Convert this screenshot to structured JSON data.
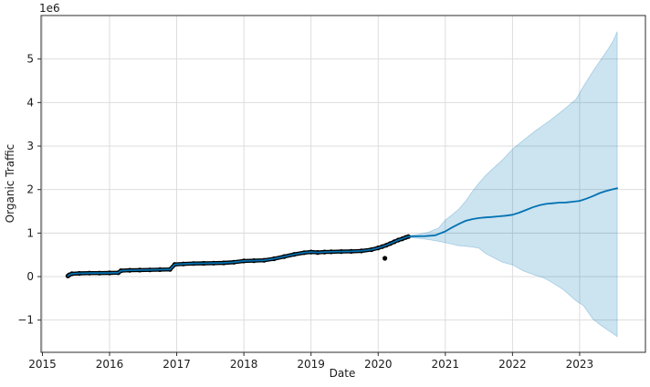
{
  "figure": {
    "background": "#ffffff"
  },
  "chart_data": {
    "type": "line",
    "title": "",
    "xlabel": "Date",
    "ylabel": "Organic Traffic",
    "y_axis_offset_text": "1e6",
    "xlim": [
      2014.98,
      2023.98
    ],
    "ylim": [
      -1.74,
      6.0
    ],
    "x_ticks": [
      2015,
      2016,
      2017,
      2018,
      2019,
      2020,
      2021,
      2022,
      2023
    ],
    "y_ticks": [
      -1,
      0,
      1,
      2,
      3,
      4,
      5
    ],
    "grid": true,
    "legend_position": "none",
    "colors": {
      "observed_points": "#000000",
      "forecast_line": "#0072B2",
      "uncertainty_band": "rgba(0,114,178,0.2)",
      "grid": "#d9d9d9",
      "spine": "#2b2b2b",
      "text": "#1a1a1a"
    },
    "series": [
      {
        "name": "observed",
        "type": "scatter",
        "points": [
          [
            2015.38,
            0.015
          ],
          [
            2015.4,
            0.04
          ],
          [
            2015.44,
            0.065
          ],
          [
            2015.55,
            0.075
          ],
          [
            2015.7,
            0.08
          ],
          [
            2015.85,
            0.08
          ],
          [
            2016.0,
            0.085
          ],
          [
            2016.13,
            0.09
          ],
          [
            2016.17,
            0.135
          ],
          [
            2016.3,
            0.145
          ],
          [
            2016.45,
            0.15
          ],
          [
            2016.6,
            0.155
          ],
          [
            2016.75,
            0.16
          ],
          [
            2016.9,
            0.165
          ],
          [
            2016.97,
            0.28
          ],
          [
            2017.1,
            0.29
          ],
          [
            2017.25,
            0.3
          ],
          [
            2017.4,
            0.305
          ],
          [
            2017.55,
            0.31
          ],
          [
            2017.7,
            0.315
          ],
          [
            2017.85,
            0.33
          ],
          [
            2018.0,
            0.36
          ],
          [
            2018.15,
            0.365
          ],
          [
            2018.3,
            0.375
          ],
          [
            2018.45,
            0.41
          ],
          [
            2018.6,
            0.46
          ],
          [
            2018.75,
            0.51
          ],
          [
            2018.9,
            0.55
          ],
          [
            2019.0,
            0.565
          ],
          [
            2019.1,
            0.555
          ],
          [
            2019.2,
            0.565
          ],
          [
            2019.3,
            0.57
          ],
          [
            2019.45,
            0.575
          ],
          [
            2019.6,
            0.58
          ],
          [
            2019.75,
            0.59
          ],
          [
            2019.9,
            0.62
          ],
          [
            2020.0,
            0.66
          ],
          [
            2020.06,
            0.69
          ],
          [
            2020.12,
            0.72
          ],
          [
            2020.18,
            0.76
          ],
          [
            2020.24,
            0.8
          ],
          [
            2020.3,
            0.84
          ],
          [
            2020.36,
            0.87
          ],
          [
            2020.41,
            0.9
          ],
          [
            2020.45,
            0.92
          ]
        ]
      },
      {
        "name": "observed-outlier",
        "type": "scatter",
        "points": [
          [
            2020.1,
            0.42
          ]
        ]
      },
      {
        "name": "forecast",
        "type": "line",
        "points": [
          [
            2020.45,
            0.92
          ],
          [
            2020.55,
            0.925
          ],
          [
            2020.7,
            0.93
          ],
          [
            2020.85,
            0.95
          ],
          [
            2021.0,
            1.04
          ],
          [
            2021.1,
            1.13
          ],
          [
            2021.2,
            1.21
          ],
          [
            2021.3,
            1.28
          ],
          [
            2021.4,
            1.32
          ],
          [
            2021.5,
            1.345
          ],
          [
            2021.6,
            1.36
          ],
          [
            2021.7,
            1.37
          ],
          [
            2021.8,
            1.385
          ],
          [
            2021.9,
            1.4
          ],
          [
            2022.0,
            1.42
          ],
          [
            2022.1,
            1.47
          ],
          [
            2022.2,
            1.53
          ],
          [
            2022.3,
            1.59
          ],
          [
            2022.4,
            1.64
          ],
          [
            2022.5,
            1.67
          ],
          [
            2022.6,
            1.685
          ],
          [
            2022.7,
            1.7
          ],
          [
            2022.8,
            1.705
          ],
          [
            2022.9,
            1.72
          ],
          [
            2023.0,
            1.74
          ],
          [
            2023.1,
            1.79
          ],
          [
            2023.2,
            1.85
          ],
          [
            2023.3,
            1.92
          ],
          [
            2023.4,
            1.97
          ],
          [
            2023.5,
            2.01
          ],
          [
            2023.56,
            2.03
          ]
        ]
      },
      {
        "name": "uncertainty",
        "type": "band",
        "points": [
          [
            2020.45,
            0.9,
            0.94
          ],
          [
            2020.6,
            0.88,
            0.97
          ],
          [
            2020.75,
            0.85,
            1.02
          ],
          [
            2020.9,
            0.81,
            1.12
          ],
          [
            2021.0,
            0.78,
            1.3
          ],
          [
            2021.1,
            0.745,
            1.42
          ],
          [
            2021.2,
            0.71,
            1.55
          ],
          [
            2021.3,
            0.7,
            1.73
          ],
          [
            2021.4,
            0.68,
            1.95
          ],
          [
            2021.5,
            0.655,
            2.15
          ],
          [
            2021.6,
            0.53,
            2.32
          ],
          [
            2021.7,
            0.45,
            2.47
          ],
          [
            2021.85,
            0.33,
            2.68
          ],
          [
            2022.0,
            0.27,
            2.93
          ],
          [
            2022.16,
            0.13,
            3.13
          ],
          [
            2022.34,
            0.03,
            3.35
          ],
          [
            2022.45,
            -0.02,
            3.47
          ],
          [
            2022.55,
            -0.1,
            3.58
          ],
          [
            2022.75,
            -0.29,
            3.82
          ],
          [
            2022.95,
            -0.56,
            4.08
          ],
          [
            2023.06,
            -0.67,
            4.38
          ],
          [
            2023.2,
            -0.98,
            4.72
          ],
          [
            2023.3,
            -1.1,
            4.95
          ],
          [
            2023.42,
            -1.23,
            5.22
          ],
          [
            2023.5,
            -1.31,
            5.42
          ],
          [
            2023.56,
            -1.38,
            5.63
          ]
        ]
      }
    ]
  }
}
